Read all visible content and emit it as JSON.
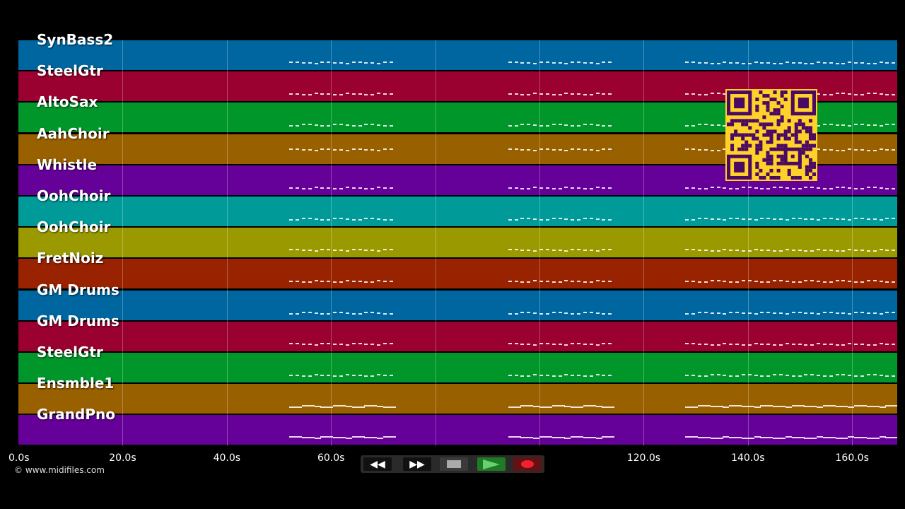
{
  "colors": {
    "background": "#000000",
    "track_palette": [
      "#0066a0",
      "#9a0030",
      "#00962a",
      "#996000",
      "#650098",
      "#009a98",
      "#9a9a00",
      "#992200"
    ],
    "qr_background": "#ffd22a",
    "qr_modules": "#4a0a63"
  },
  "tracks": [
    {
      "label": "SynBass2",
      "color": "#0066a0"
    },
    {
      "label": "SteelGtr",
      "color": "#9a0030"
    },
    {
      "label": "AltoSax",
      "color": "#00962a"
    },
    {
      "label": "AahChoir",
      "color": "#996000"
    },
    {
      "label": "Whistle",
      "color": "#650098"
    },
    {
      "label": "OohChoir",
      "color": "#009a98"
    },
    {
      "label": "OohChoir",
      "color": "#9a9a00"
    },
    {
      "label": "FretNoiz",
      "color": "#992200"
    },
    {
      "label": "GM Drums",
      "color": "#0066a0"
    },
    {
      "label": "GM Drums",
      "color": "#9a0030"
    },
    {
      "label": "SteelGtr",
      "color": "#00962a"
    },
    {
      "label": "Ensmble1",
      "color": "#996000"
    },
    {
      "label": "GrandPno",
      "color": "#650098"
    }
  ],
  "timeline": {
    "unit": "s",
    "duration_s": 169,
    "ticks": [
      "0.0s",
      "20.0s",
      "40.0s",
      "60.0s",
      "120.0s",
      "140.0s",
      "160.0s"
    ],
    "tick_values": [
      0,
      20,
      40,
      60,
      120,
      140,
      160
    ],
    "grid_values": [
      20,
      40,
      60,
      80,
      100,
      120,
      140,
      160
    ]
  },
  "transport": {
    "rewind_icon": "rewind-icon",
    "fast_forward_icon": "fast-forward-icon",
    "stop_icon": "stop-icon",
    "play_icon": "play-icon",
    "record_icon": "record-icon"
  },
  "copyright": "© www.midifiles.com",
  "qr_icon": "qr-code-icon"
}
